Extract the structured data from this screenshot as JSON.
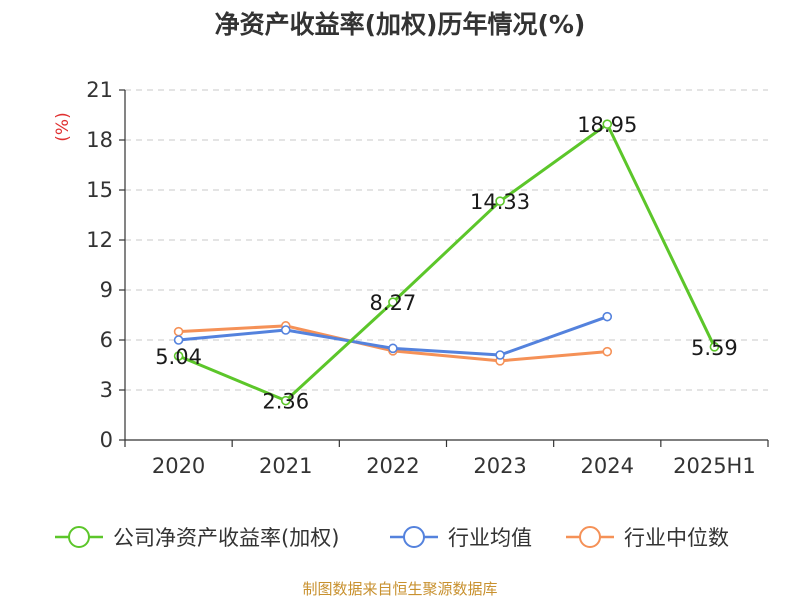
{
  "chart_data": {
    "type": "line",
    "title": "净资产收益率(加权)历年情况(%)",
    "ylabel": "(%)",
    "xlabel": "",
    "categories": [
      "2020",
      "2021",
      "2022",
      "2023",
      "2024",
      "2025H1"
    ],
    "ylim": [
      0,
      21
    ],
    "yticks": [
      0,
      3,
      6,
      9,
      12,
      15,
      18,
      21
    ],
    "grid": true,
    "legend_position": "bottom",
    "series": [
      {
        "name": "公司净资产收益率(加权)",
        "color": "#5cc62a",
        "values": [
          5.04,
          2.36,
          8.27,
          14.33,
          18.95,
          5.59
        ],
        "labels": [
          "5.04",
          "2.36",
          "8.27",
          "14.33",
          "18.95",
          "5.59"
        ]
      },
      {
        "name": "行业均值",
        "color": "#5482dd",
        "values": [
          6.0,
          6.6,
          5.5,
          5.1,
          7.4,
          null
        ]
      },
      {
        "name": "行业中位数",
        "color": "#f59157",
        "values": [
          6.5,
          6.85,
          5.35,
          4.75,
          5.3,
          null
        ]
      }
    ]
  },
  "footer": {
    "source": "制图数据来自恒生聚源数据库"
  }
}
